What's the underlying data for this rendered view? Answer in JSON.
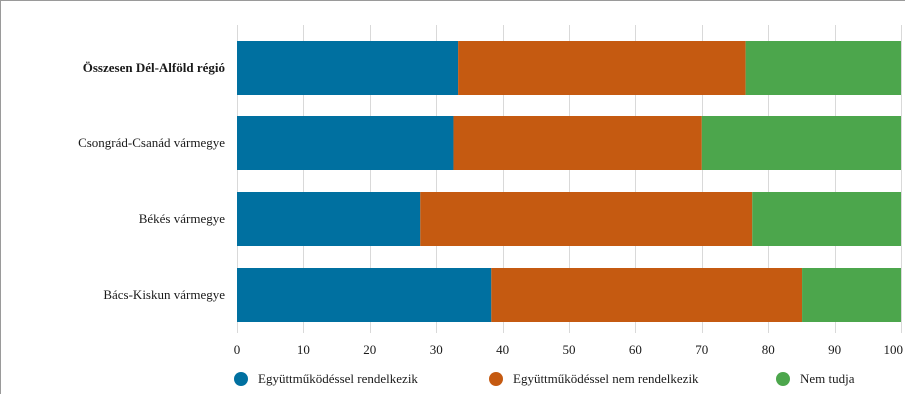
{
  "chart_data": {
    "type": "bar",
    "orientation": "horizontal",
    "stacked": true,
    "categories": [
      "Összesen Dél-Alföld régió",
      "Csongrád-Csanád vármegye",
      "Békés vármegye",
      "Bács-Kiskun vármegye"
    ],
    "category_bold": [
      true,
      false,
      false,
      false
    ],
    "series": [
      {
        "name": "Együttműködéssel rendelkezik",
        "color": "#0070a0",
        "values": [
          33.3,
          32.6,
          27.6,
          38.3
        ]
      },
      {
        "name": "Együttműködéssel nem rendelkezik",
        "color": "#c55a11",
        "values": [
          43.3,
          37.4,
          50.0,
          46.8
        ]
      },
      {
        "name": "Nem tudja",
        "color": "#4ca64c",
        "values": [
          23.4,
          30.0,
          22.4,
          14.9
        ]
      }
    ],
    "xlim": [
      0,
      100
    ],
    "xticks": [
      "0",
      "10",
      "20",
      "30",
      "40",
      "50",
      "60",
      "70",
      "80",
      "90",
      "100"
    ],
    "grid": true,
    "legend_position": "bottom"
  }
}
